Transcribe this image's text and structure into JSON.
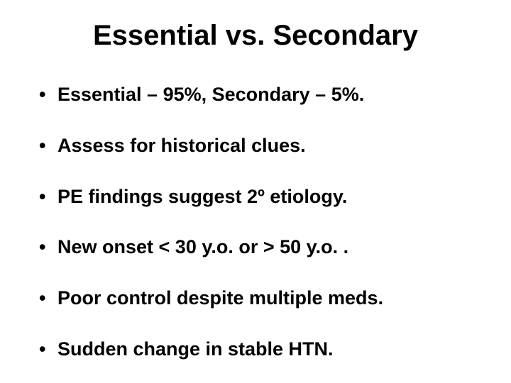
{
  "slide": {
    "title": "Essential vs. Secondary",
    "bullets": [
      "Essential – 95%, Secondary – 5%.",
      "Assess for historical clues.",
      "PE findings suggest 2º etiology.",
      "New onset < 30 y.o. or > 50 y.o. .",
      "Poor control despite multiple meds.",
      "Sudden change in stable HTN."
    ],
    "background_color": "#ffffff",
    "text_color": "#000000",
    "title_fontsize": 40,
    "bullet_fontsize": 27,
    "font_weight": "bold",
    "font_family": "Arial"
  }
}
